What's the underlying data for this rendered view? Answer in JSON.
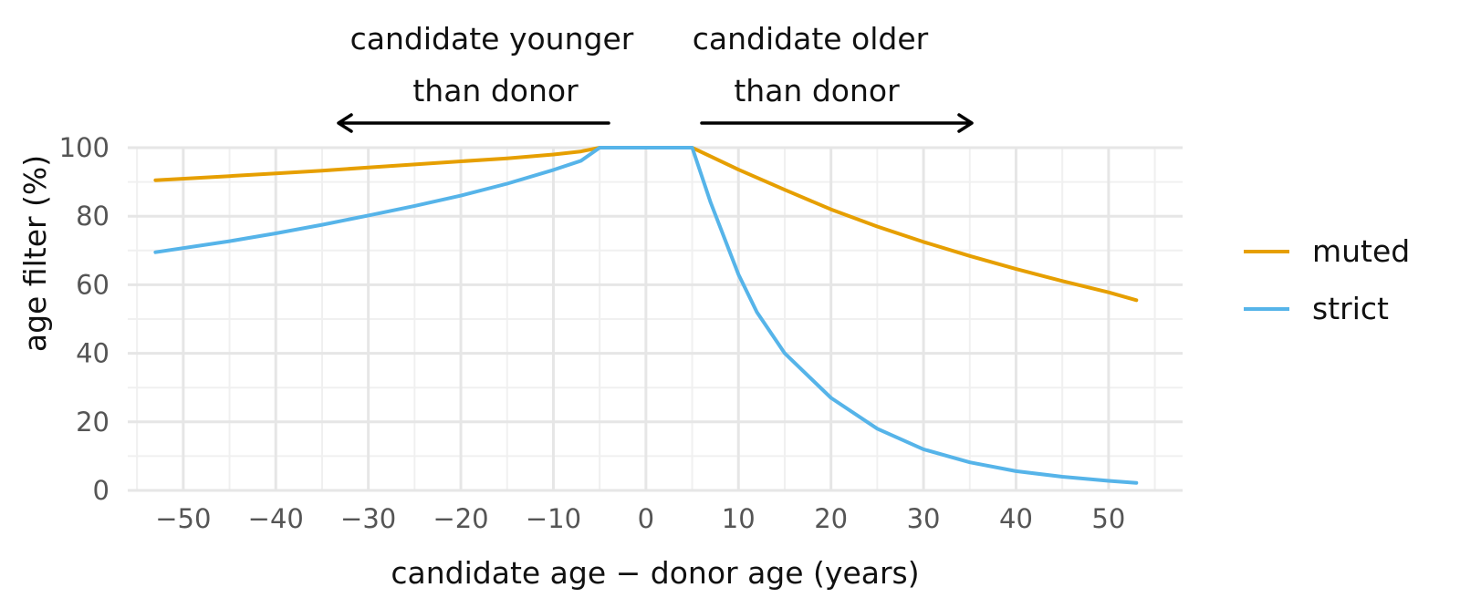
{
  "chart_data": {
    "type": "line",
    "title": "",
    "xlabel": "candidate age − donor age (years)",
    "ylabel": "age filter (%)",
    "xlim": [
      -56,
      58
    ],
    "ylim": [
      0,
      100
    ],
    "x_ticks": [
      -50,
      -40,
      -30,
      -20,
      -10,
      0,
      10,
      20,
      30,
      40,
      50
    ],
    "x_tick_labels": [
      "−50",
      "−40",
      "−30",
      "−20",
      "−10",
      "0",
      "10",
      "20",
      "30",
      "40",
      "50"
    ],
    "y_ticks": [
      0,
      20,
      40,
      60,
      80,
      100
    ],
    "y_tick_labels": [
      "0",
      "20",
      "40",
      "60",
      "80",
      "100"
    ],
    "grid": true,
    "legend_position": "right",
    "annotations": [
      {
        "lines": [
          "candidate younger",
          "than donor"
        ],
        "arrow": "left"
      },
      {
        "lines": [
          "candidate older",
          "than donor"
        ],
        "arrow": "right"
      }
    ],
    "series": [
      {
        "name": "muted",
        "color": "#E69F00",
        "x": [
          -53,
          -45,
          -40,
          -35,
          -30,
          -25,
          -20,
          -15,
          -10,
          -7,
          -5,
          0,
          5,
          10,
          15,
          20,
          25,
          30,
          35,
          40,
          45,
          50,
          53
        ],
        "y": [
          90.5,
          91.7,
          92.5,
          93.3,
          94.2,
          95.1,
          96.0,
          96.9,
          98.0,
          98.9,
          100,
          100,
          100,
          93.6,
          87.7,
          82.0,
          77.0,
          72.5,
          68.4,
          64.6,
          61.1,
          57.8,
          55.5
        ]
      },
      {
        "name": "strict",
        "color": "#56B4E9",
        "x": [
          -53,
          -45,
          -40,
          -35,
          -30,
          -25,
          -20,
          -15,
          -10,
          -7,
          -5,
          0,
          5,
          7,
          10,
          12,
          15,
          20,
          25,
          30,
          35,
          40,
          45,
          50,
          53
        ],
        "y": [
          69.5,
          72.7,
          75.0,
          77.5,
          80.2,
          83.0,
          86.0,
          89.5,
          93.5,
          96.2,
          100,
          100,
          100,
          84.0,
          63.0,
          52.0,
          40.0,
          27.0,
          18.0,
          12.0,
          8.2,
          5.6,
          4.0,
          2.8,
          2.2
        ]
      }
    ]
  }
}
